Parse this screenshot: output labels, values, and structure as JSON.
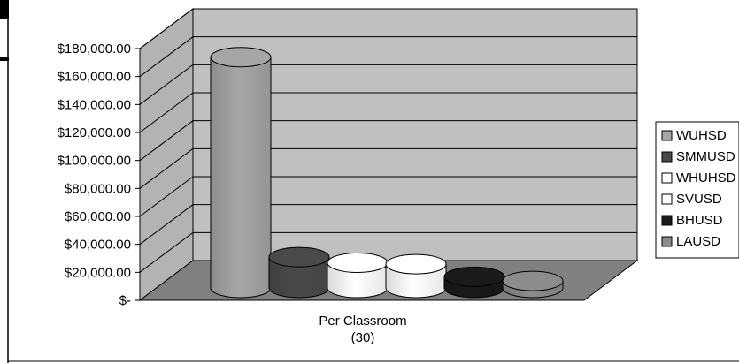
{
  "chart_data": {
    "type": "bar",
    "style": "3d-cylinder",
    "categories": [
      "Per Classroom\n(30)"
    ],
    "series": [
      {
        "name": "WUHSD",
        "values": [
          165000
        ],
        "color": "#a6a6a6"
      },
      {
        "name": "SMMUSD",
        "values": [
          22000
        ],
        "color": "#4a4a4a"
      },
      {
        "name": "WHUHSD",
        "values": [
          18000
        ],
        "color": "#ffffff"
      },
      {
        "name": "SVUSD",
        "values": [
          17000
        ],
        "color": "#ffffff"
      },
      {
        "name": "BHUSD",
        "values": [
          8000
        ],
        "color": "#1a1a1a"
      },
      {
        "name": "LAUSD",
        "values": [
          5000
        ],
        "color": "#8c8c8c"
      }
    ],
    "ylim": [
      0,
      180000
    ],
    "y_ticks": [
      "$-",
      "$20,000.00",
      "$40,000.00",
      "$60,000.00",
      "$80,000.00",
      "$100,000.00",
      "$120,000.00",
      "$140,000.00",
      "$160,000.00",
      "$180,000.00"
    ],
    "grid": true,
    "legend": "right",
    "title": "",
    "xlabel": "",
    "ylabel": "",
    "wall_color": "#c0c0c0",
    "floor_color": "#808080"
  }
}
